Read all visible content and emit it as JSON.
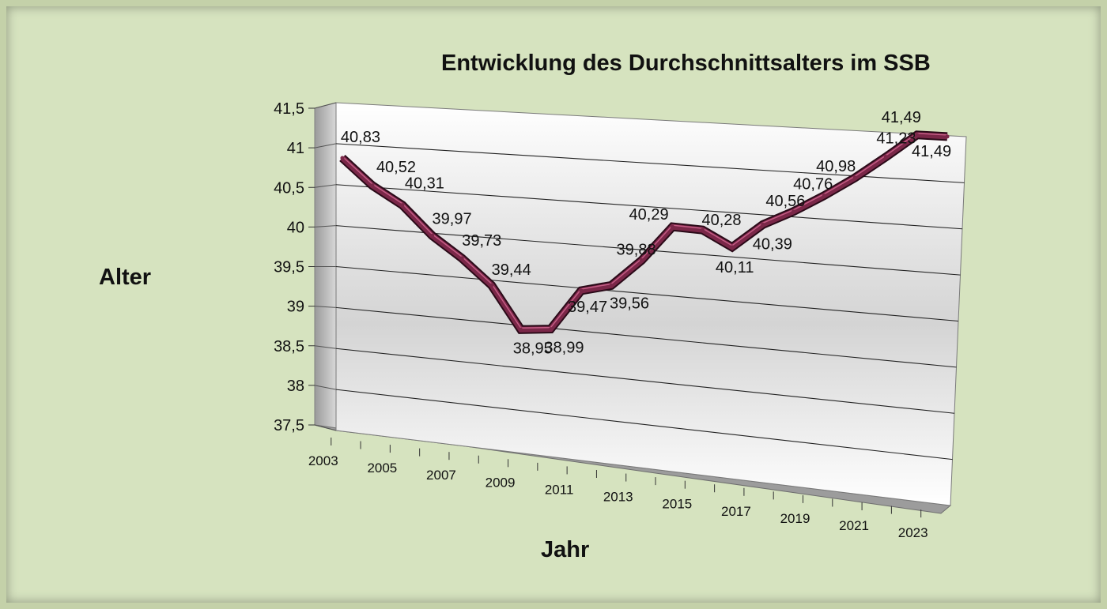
{
  "chart_data": {
    "type": "line",
    "title": "Entwicklung des Durchschnittsalters im SSB",
    "xlabel": "Jahr",
    "ylabel": "Alter",
    "ylim": [
      37.5,
      41.5
    ],
    "y_ticks": [
      "41,5",
      "41",
      "40,5",
      "40",
      "39,5",
      "39",
      "38,5",
      "38",
      "37,5"
    ],
    "x_tick_labels": [
      "2003",
      "2005",
      "2007",
      "2009",
      "2011",
      "2013",
      "2015",
      "2017",
      "2019",
      "2021",
      "2023"
    ],
    "x": [
      2003,
      2004,
      2005,
      2006,
      2007,
      2008,
      2009,
      2010,
      2011,
      2012,
      2013,
      2014,
      2015,
      2016,
      2017,
      2018,
      2019,
      2020,
      2021,
      2022,
      2023
    ],
    "values": [
      40.83,
      40.52,
      40.31,
      39.97,
      39.73,
      39.44,
      38.95,
      38.99,
      39.47,
      39.56,
      39.88,
      40.29,
      40.28,
      40.11,
      40.39,
      40.56,
      40.76,
      40.98,
      41.23,
      41.49,
      41.49
    ],
    "data_labels": [
      "40,83",
      "40,52",
      "40,31",
      "39,97",
      "39,73",
      "39,44",
      "38,95",
      "38,99",
      "39,47",
      "39,56",
      "39,88",
      "40,29",
      "40,28",
      "40,11",
      "40,39",
      "40,56",
      "40,76",
      "40,98",
      "41,23",
      "41,49",
      "41,49"
    ],
    "series_color": "#7a2748",
    "grid": true,
    "legend": "none"
  }
}
